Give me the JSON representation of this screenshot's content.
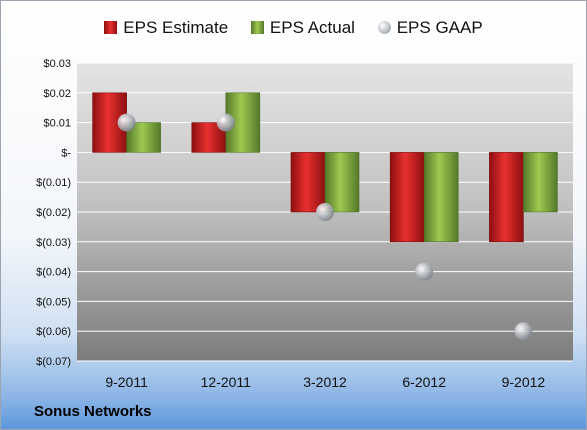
{
  "chart_data": {
    "type": "bar",
    "categories": [
      "9-2011",
      "12-2011",
      "3-2012",
      "6-2012",
      "9-2012"
    ],
    "series": [
      {
        "name": "EPS Estimate",
        "kind": "bar",
        "color": "#d42222",
        "values": [
          0.02,
          0.01,
          -0.02,
          -0.03,
          -0.03
        ]
      },
      {
        "name": "EPS Actual",
        "kind": "bar",
        "color": "#8ab440",
        "values": [
          0.01,
          0.02,
          -0.02,
          -0.03,
          -0.02
        ]
      },
      {
        "name": "EPS GAAP",
        "kind": "marker",
        "color": "#a0a4aa",
        "values": [
          0.01,
          0.01,
          -0.02,
          -0.04,
          -0.06
        ]
      }
    ],
    "ylim": [
      -0.07,
      0.03
    ],
    "yticks": [
      0.03,
      0.02,
      0.01,
      0,
      -0.01,
      -0.02,
      -0.03,
      -0.04,
      -0.05,
      -0.06,
      -0.07
    ],
    "ytick_labels": [
      "$0.03",
      "$0.02",
      "$0.01",
      "$-",
      "$(0.01)",
      "$(0.02)",
      "$(0.03)",
      "$(0.04)",
      "$(0.05)",
      "$(0.06)",
      "$(0.07)"
    ],
    "grid": true,
    "legend_position": "top"
  },
  "legend": {
    "estimate": "EPS Estimate",
    "actual": "EPS Actual",
    "gaap": "EPS GAAP"
  },
  "company": "Sonus Networks"
}
